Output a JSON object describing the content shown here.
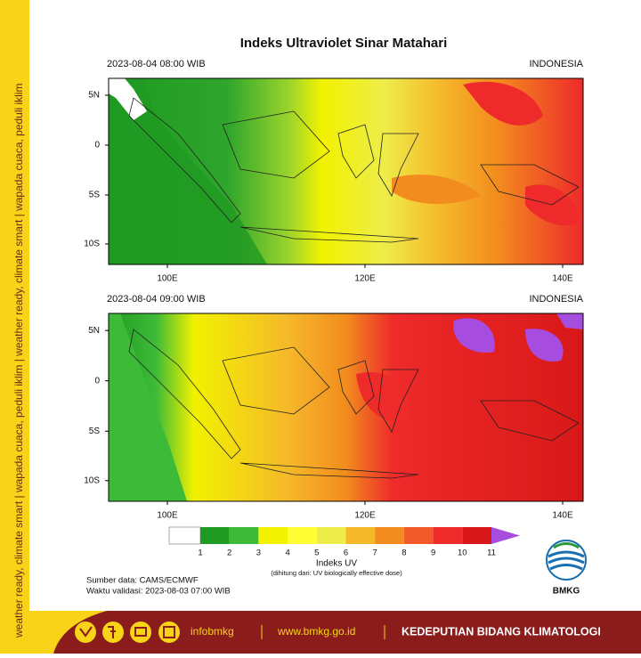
{
  "sidebar_text": "weather ready, climate smart  |  wapada cuaca, peduli iklim  |  weather ready, climate smart  |  wapada cuaca, peduli iklim",
  "title": "Indeks Ultraviolet Sinar Matahari",
  "maps": [
    {
      "time": "2023-08-04  08:00 WIB",
      "region": "INDONESIA"
    },
    {
      "time": "2023-08-04  09:00 WIB",
      "region": "INDONESIA"
    }
  ],
  "lat_ticks": [
    "5N",
    "0",
    "5S",
    "10S"
  ],
  "lon_ticks": [
    "100E",
    "120E",
    "140E"
  ],
  "colorbar": {
    "ticks": [
      "1",
      "2",
      "3",
      "4",
      "5",
      "6",
      "7",
      "8",
      "9",
      "10",
      "11"
    ],
    "colors": [
      "#ffffff",
      "#1f9a22",
      "#3dbb38",
      "#f2f200",
      "#ffff33",
      "#eded4a",
      "#f5b82a",
      "#f28c1e",
      "#f25a2a",
      "#ee2a2a",
      "#d81818",
      "#a64de0"
    ],
    "label": "Indeks UV",
    "note": "(dihitung dari: UV biologically effective dose)"
  },
  "source": "Sumber data: CAMS/ECMWF",
  "validity": "Waktu validasi: 2023-08-03 07:00 WIB",
  "logo": "BMKG",
  "footer": {
    "handle": "infobmkg",
    "website": "www.bmkg.go.id",
    "department": "KEDEPUTIAN BIDANG KLIMATOLOGI"
  }
}
